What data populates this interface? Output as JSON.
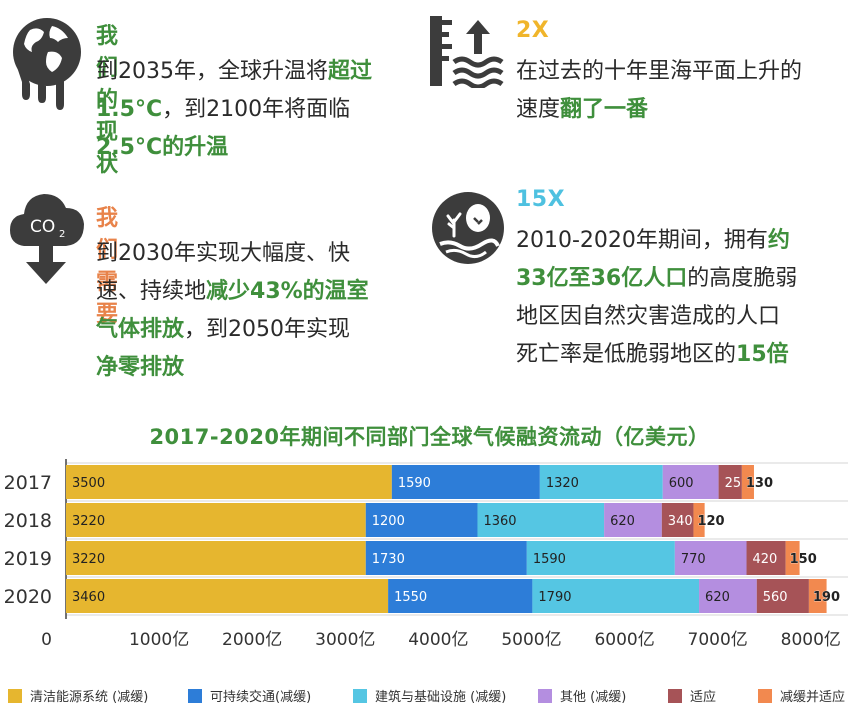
{
  "blocks": {
    "status_quo": {
      "heading": "我们的现状",
      "l1": "到2035年，全球升温将",
      "l1_hl": "超过",
      "l2_hl": "1.5°C",
      "l2": "，到2100年将面临",
      "l3_hl": "2.5°C的升温"
    },
    "sea_level": {
      "heading": "2X",
      "l1": "在过去的十年里海平面上升的",
      "l2": "速度",
      "l2_hl": "翻了一番"
    },
    "need": {
      "heading": "我们需要",
      "l1": "到2030年实现大幅度、快",
      "l2": "速、持续地",
      "l2_hl": "减少43%的温室",
      "l3_hl": "气体排放",
      "l3": "，到2050年实现",
      "l4_hl": "净零排放"
    },
    "vulnerable": {
      "heading": "15X",
      "l1": "2010-2020年期间，拥有",
      "l1_hl": "约",
      "l2_hl": "33亿至36亿人口",
      "l2": "的高度脆弱",
      "l3": "地区因自然灾害造成的人口",
      "l4": "死亡率是低脆弱地区的",
      "l4_hl": "15倍"
    },
    "icons": {
      "status_quo": "melting-globe-icon",
      "sea_level": "sea-level-rise-icon",
      "need": "co2-cloud-down-icon",
      "vulnerable": "nature-disaster-icon",
      "co2_text": "CO",
      "co2_sub": "2"
    }
  },
  "colors": {
    "highlight_green": "#3f8f3c",
    "orange_heading": "#e8834a",
    "teal_heading": "#4ec1e0",
    "gold_heading": "#f0b52b",
    "icon_dark": "#3c3c3c"
  },
  "chart_data": {
    "type": "bar",
    "orientation": "horizontal",
    "stacked": true,
    "title": "2017-2020年期间不同部门全球气候融资流动（亿美元）",
    "categories": [
      "2017",
      "2018",
      "2019",
      "2020"
    ],
    "series": [
      {
        "name": "清洁能源系统 (减缓)",
        "color": "#e6b62f",
        "values": [
          3500,
          3220,
          3220,
          3460
        ],
        "labels": [
          "3500",
          "3220",
          "3220",
          "3460"
        ]
      },
      {
        "name": "可持续交通(减缓)",
        "color": "#2d7dd8",
        "values": [
          1590,
          1200,
          1730,
          1550
        ],
        "labels": [
          "1590",
          "1200",
          "1730",
          "1550"
        ]
      },
      {
        "name": "建筑与基础设施 (减缓)",
        "color": "#55c6e3",
        "values": [
          1320,
          1360,
          1590,
          1790
        ],
        "labels": [
          "1320",
          "1360",
          "1590",
          "1790"
        ]
      },
      {
        "name": "其他 (减缓)",
        "color": "#b48ee0",
        "values": [
          600,
          620,
          770,
          620
        ],
        "labels": [
          "600",
          "620",
          "770",
          "620"
        ]
      },
      {
        "name": "适应",
        "color": "#a65357",
        "values": [
          250,
          340,
          420,
          560
        ],
        "labels": [
          "250",
          "340",
          "420",
          "560"
        ]
      },
      {
        "name": "减缓并适应",
        "color": "#f2894f",
        "values": [
          130,
          120,
          150,
          190
        ],
        "labels": [
          "130",
          "120",
          "150",
          "190"
        ]
      }
    ],
    "x_ticks": [
      "0",
      "1000亿",
      "2000亿",
      "3000亿",
      "4000亿",
      "5000亿",
      "6000亿",
      "7000亿",
      "8000亿"
    ],
    "xlim": [
      0,
      8400
    ],
    "legend_position": "bottom",
    "grid": false
  }
}
